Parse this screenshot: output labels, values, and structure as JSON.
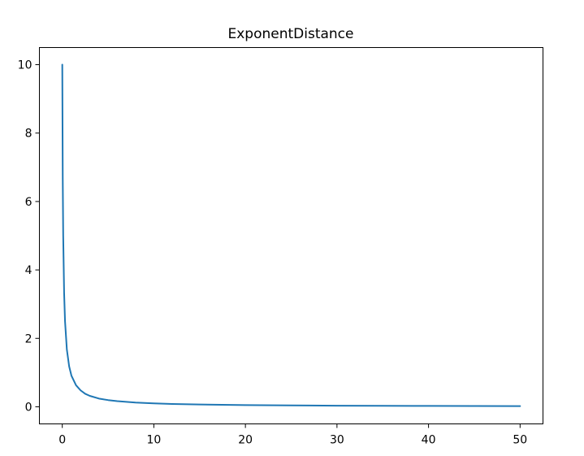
{
  "chart_data": {
    "type": "line",
    "title": "ExponentDistance",
    "xlabel": "",
    "ylabel": "",
    "xlim": [
      -2.5,
      52.5
    ],
    "ylim": [
      -0.5,
      10.5
    ],
    "x_ticks": [
      0,
      10,
      20,
      30,
      40,
      50
    ],
    "y_ticks": [
      0,
      2,
      4,
      6,
      8,
      10
    ],
    "grid": false,
    "legend": "none",
    "line_color": "#1f77b4",
    "series": [
      {
        "x": [
          0,
          0.05,
          0.1,
          0.2,
          0.3,
          0.5,
          0.75,
          1,
          1.5,
          2,
          2.5,
          3,
          4,
          5,
          6,
          8,
          10,
          12,
          15,
          20,
          25,
          30,
          35,
          40,
          45,
          50
        ],
        "values": [
          10,
          6.67,
          5,
          3.33,
          2.5,
          1.67,
          1.18,
          0.91,
          0.63,
          0.48,
          0.38,
          0.32,
          0.24,
          0.196,
          0.164,
          0.123,
          0.099,
          0.083,
          0.066,
          0.05,
          0.04,
          0.033,
          0.028,
          0.025,
          0.022,
          0.02
        ]
      }
    ]
  }
}
